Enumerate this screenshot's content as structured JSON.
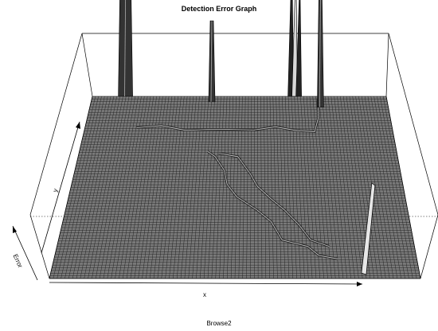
{
  "chart_data": {
    "type": "surface",
    "title": "Detection Error Graph",
    "caption": "Browse2",
    "xlabel": "x",
    "ylabel": "y",
    "zlabel": "Error",
    "grid": true,
    "colors": {
      "surface": "#7a7a7a",
      "grid_line": "#1e1e1e",
      "box": "#000000"
    },
    "features": [
      {
        "name": "spike-left-block",
        "u": 0.11,
        "v": 0.0,
        "height": 0.58
      },
      {
        "name": "spike-center",
        "u": 0.405,
        "v": 0.03,
        "height": 0.45
      },
      {
        "name": "spikes-right-cluster",
        "u": 0.69,
        "v": 0.0,
        "height": 0.8
      },
      {
        "name": "spike-right-thin",
        "u": 0.77,
        "v": 0.06,
        "height": 0.62
      },
      {
        "name": "spike-bottom-right",
        "u": 0.86,
        "v": 0.97,
        "height": 0.5
      }
    ]
  }
}
